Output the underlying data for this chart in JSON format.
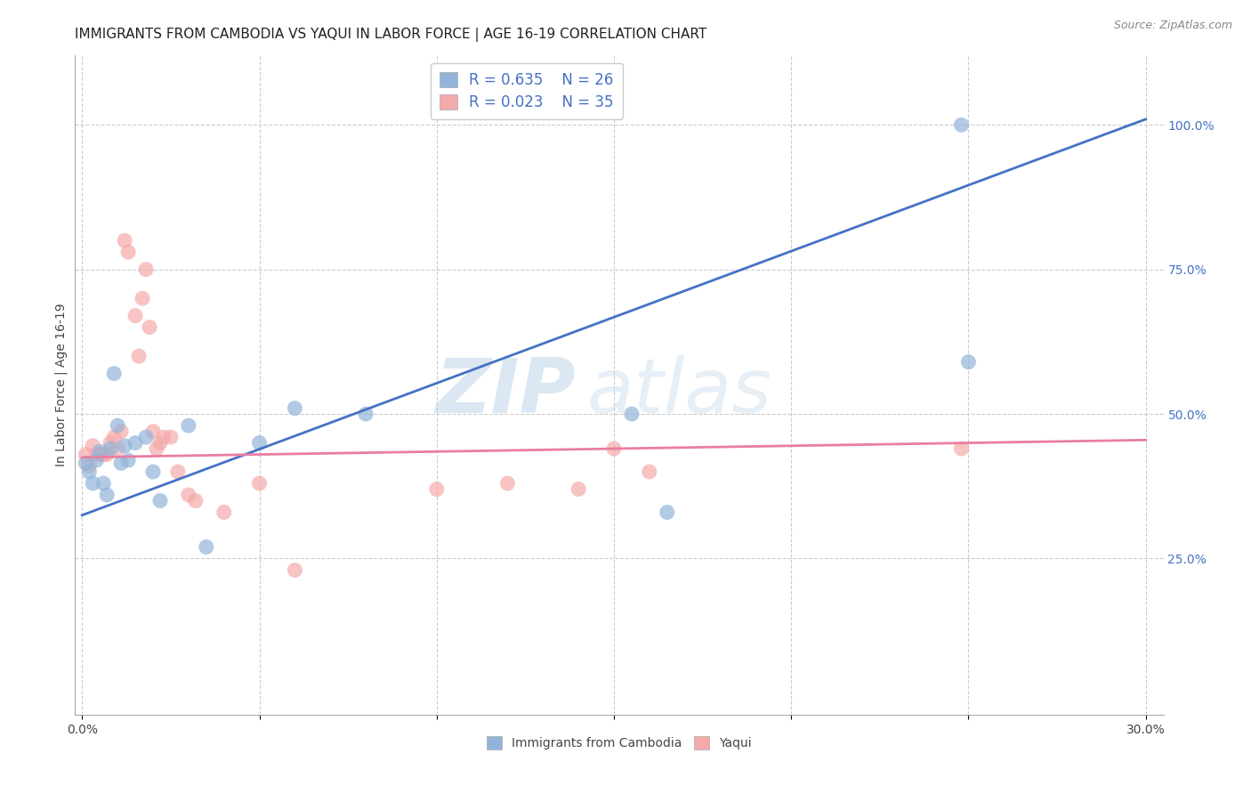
{
  "title": "IMMIGRANTS FROM CAMBODIA VS YAQUI IN LABOR FORCE | AGE 16-19 CORRELATION CHART",
  "source": "Source: ZipAtlas.com",
  "ylabel": "In Labor Force | Age 16-19",
  "xlim": [
    -0.002,
    0.305
  ],
  "ylim": [
    -0.02,
    1.12
  ],
  "xticks": [
    0.0,
    0.05,
    0.1,
    0.15,
    0.2,
    0.25,
    0.3
  ],
  "xticklabels": [
    "0.0%",
    "",
    "",
    "",
    "",
    "",
    "30.0%"
  ],
  "yticks_right": [
    0.25,
    0.5,
    0.75,
    1.0
  ],
  "ytick_labels_right": [
    "25.0%",
    "50.0%",
    "75.0%",
    "100.0%"
  ],
  "blue_R": 0.635,
  "blue_N": 26,
  "pink_R": 0.023,
  "pink_N": 35,
  "blue_color": "#92B4D9",
  "pink_color": "#F4AAAA",
  "blue_line_color": "#4472C4",
  "pink_line_color": "#E97EA0",
  "watermark_zip": "ZIP",
  "watermark_atlas": "atlas",
  "legend_label_blue": "Immigrants from Cambodia",
  "legend_label_pink": "Yaqui",
  "blue_scatter_x": [
    0.001,
    0.002,
    0.003,
    0.004,
    0.005,
    0.006,
    0.007,
    0.008,
    0.009,
    0.01,
    0.011,
    0.012,
    0.013,
    0.015,
    0.018,
    0.02,
    0.022,
    0.03,
    0.035,
    0.05,
    0.06,
    0.08,
    0.155,
    0.165,
    0.248,
    0.25
  ],
  "blue_scatter_y": [
    0.415,
    0.4,
    0.38,
    0.42,
    0.435,
    0.38,
    0.36,
    0.44,
    0.57,
    0.48,
    0.415,
    0.445,
    0.42,
    0.45,
    0.46,
    0.4,
    0.35,
    0.48,
    0.27,
    0.45,
    0.51,
    0.5,
    0.5,
    0.33,
    1.0,
    0.59
  ],
  "pink_scatter_x": [
    0.001,
    0.002,
    0.003,
    0.004,
    0.005,
    0.006,
    0.007,
    0.008,
    0.009,
    0.01,
    0.011,
    0.012,
    0.013,
    0.015,
    0.016,
    0.017,
    0.018,
    0.019,
    0.02,
    0.021,
    0.022,
    0.023,
    0.025,
    0.027,
    0.03,
    0.032,
    0.04,
    0.05,
    0.06,
    0.1,
    0.12,
    0.14,
    0.15,
    0.16,
    0.248
  ],
  "pink_scatter_y": [
    0.43,
    0.41,
    0.445,
    0.43,
    0.43,
    0.43,
    0.43,
    0.45,
    0.46,
    0.44,
    0.47,
    0.8,
    0.78,
    0.67,
    0.6,
    0.7,
    0.75,
    0.65,
    0.47,
    0.44,
    0.45,
    0.46,
    0.46,
    0.4,
    0.36,
    0.35,
    0.33,
    0.38,
    0.23,
    0.37,
    0.38,
    0.37,
    0.44,
    0.4,
    0.44
  ],
  "blue_line_x": [
    0.0,
    0.3
  ],
  "blue_line_y": [
    0.325,
    1.01
  ],
  "pink_line_x": [
    0.0,
    0.3
  ],
  "pink_line_y": [
    0.425,
    0.455
  ],
  "grid_color": "#CCCCCC",
  "background_color": "#FFFFFF",
  "title_fontsize": 11,
  "axis_label_fontsize": 10,
  "tick_fontsize": 10
}
